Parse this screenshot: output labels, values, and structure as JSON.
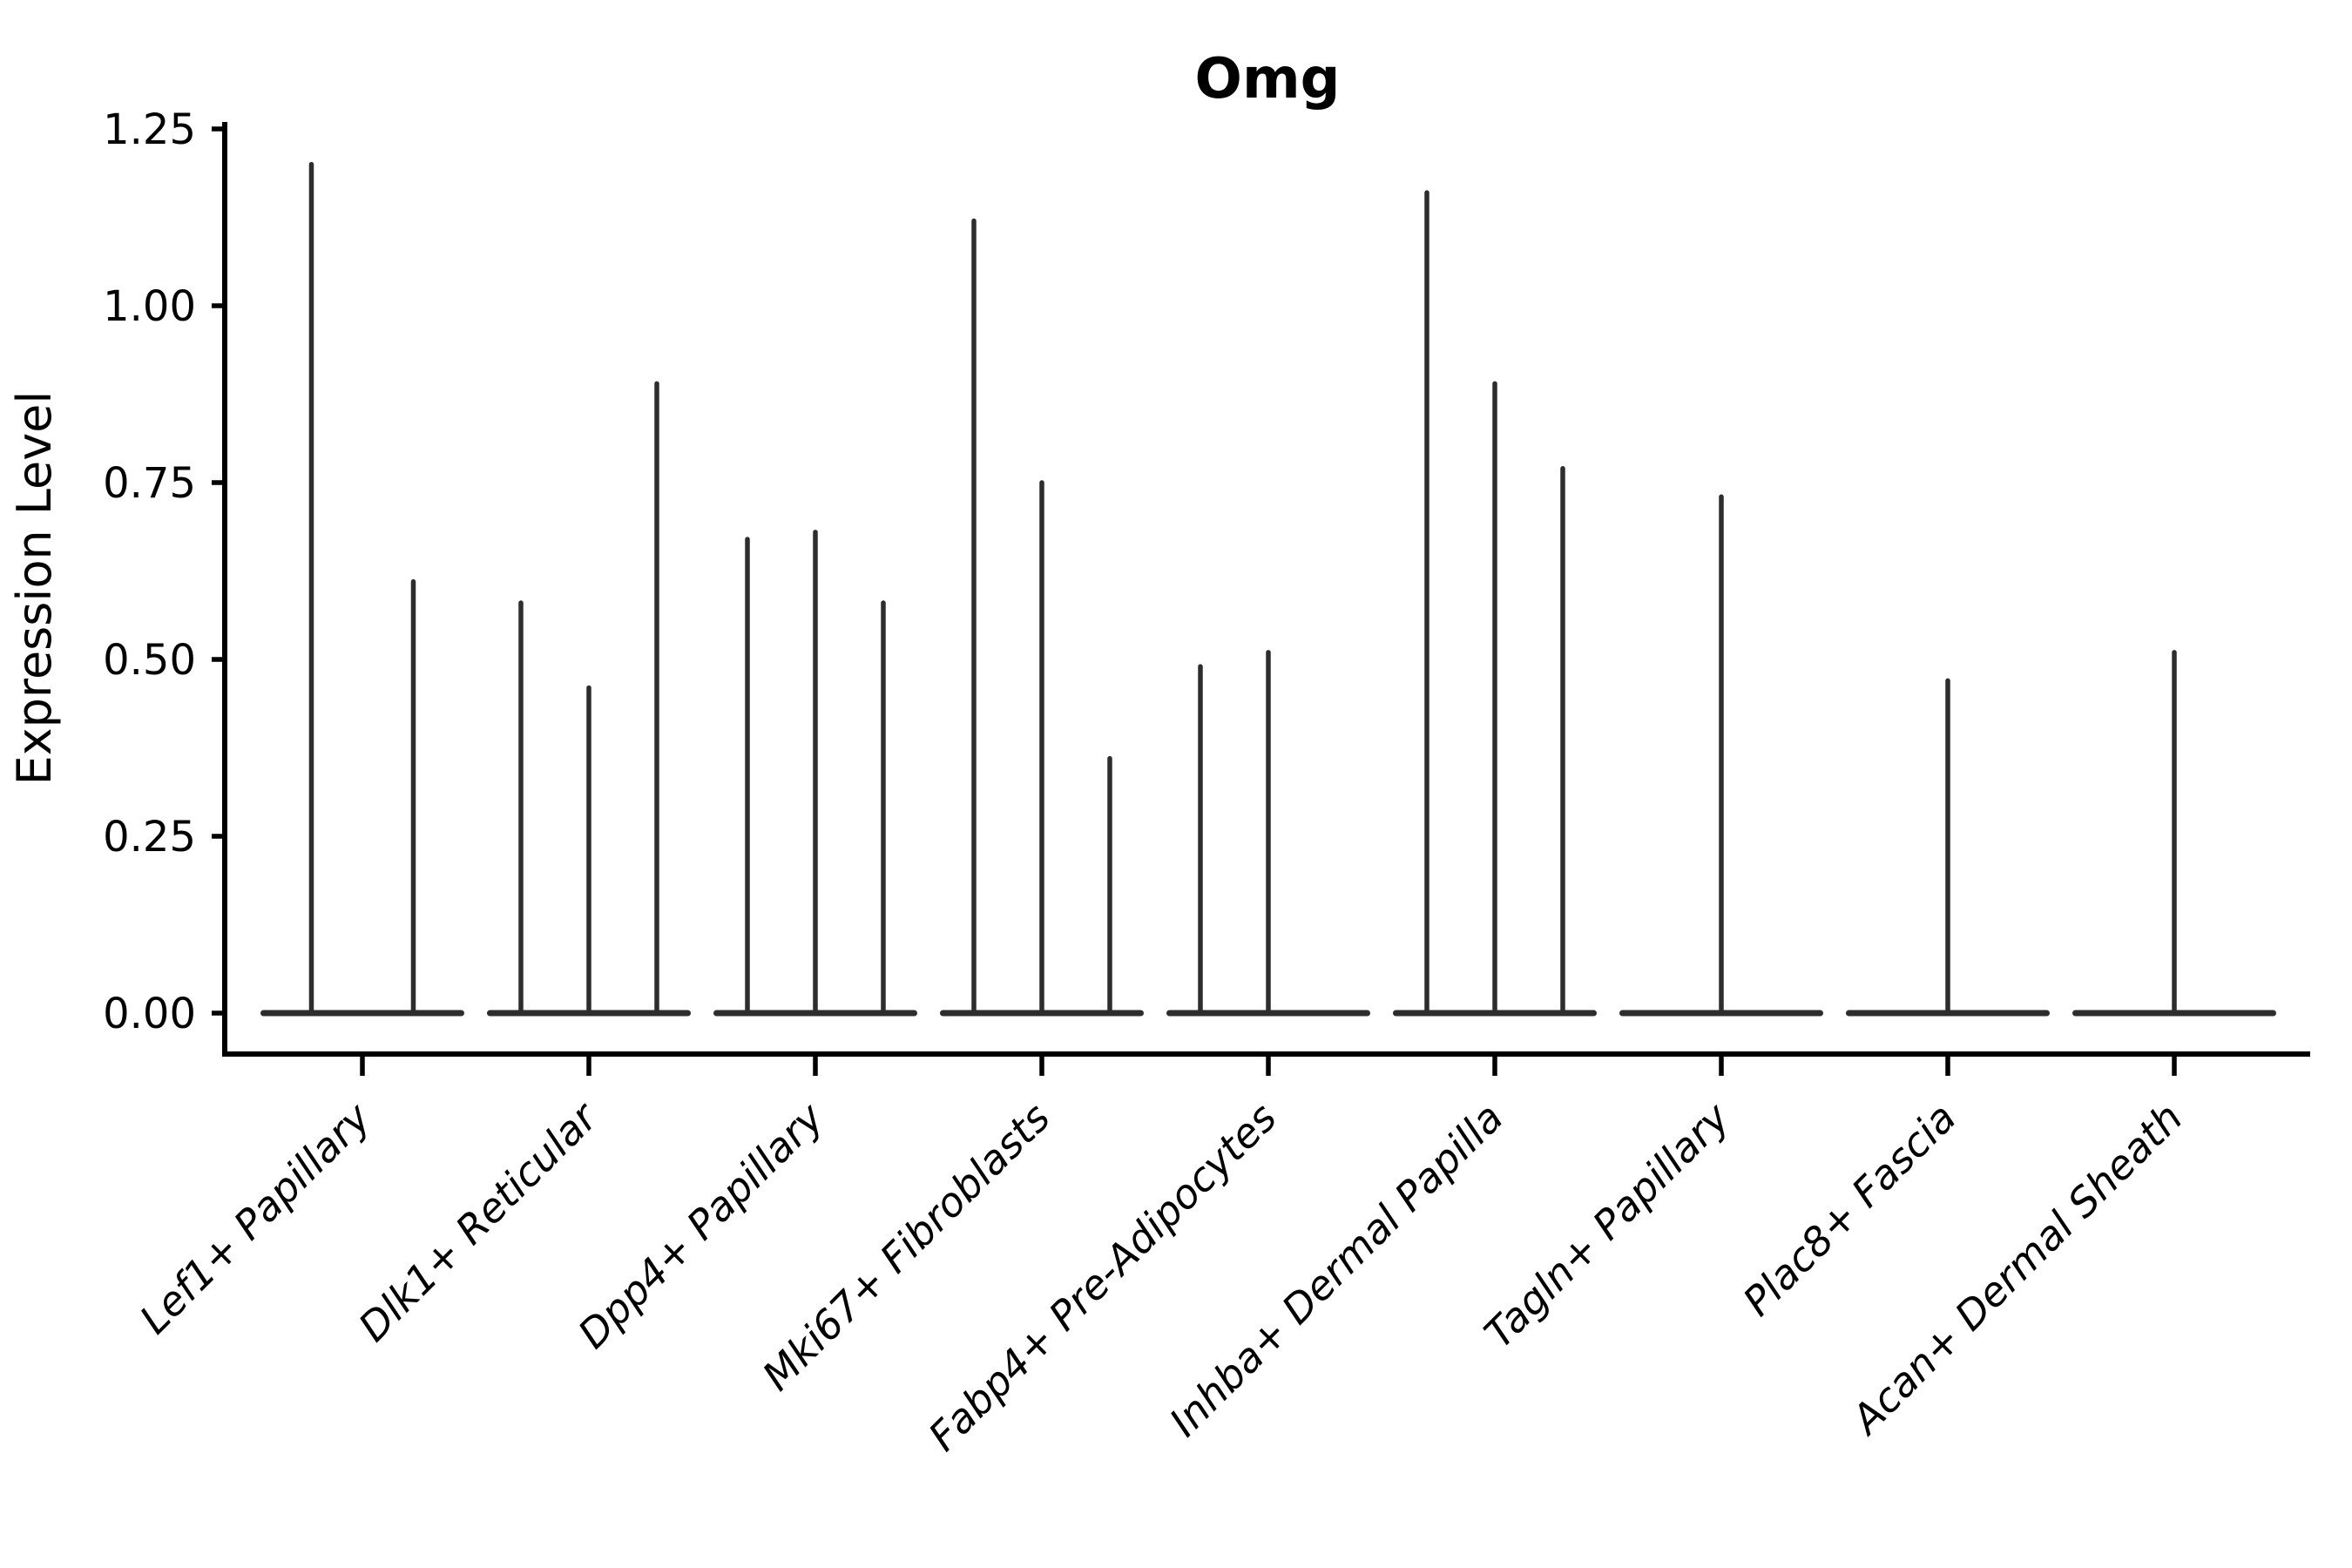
{
  "chart_data": {
    "type": "violin",
    "title": "Omg",
    "xlabel": "",
    "ylabel": "Expression Level",
    "y_ticks": [
      {
        "value": 0.0,
        "label": "0.00"
      },
      {
        "value": 0.25,
        "label": "0.25"
      },
      {
        "value": 0.5,
        "label": "0.50"
      },
      {
        "value": 0.75,
        "label": "0.75"
      },
      {
        "value": 1.0,
        "label": "1.00"
      },
      {
        "value": 1.25,
        "label": "1.25"
      }
    ],
    "ylim": [
      -0.06,
      1.26
    ],
    "grid": false,
    "legend_position": "none",
    "x_tick_label_rotation": 45,
    "baseline_value": 0,
    "categories": [
      "Lef1+ Papillary",
      "Dlk1+ Reticular",
      "Dpp4+ Papillary",
      "Mki67+ Fibroblasts",
      "Fabp4+ Pre-Adipocytes",
      "Inhba+ Dermal Papilla",
      "Tagln+ Papillary",
      "Plac8+ Fascia",
      "Acan+ Dermal Sheath"
    ],
    "groups": [
      {
        "category": "Lef1+ Papillary",
        "spike_maxima": [
          1.2,
          0.61
        ]
      },
      {
        "category": "Dlk1+ Reticular",
        "spike_maxima": [
          0.58,
          0.46,
          0.89
        ]
      },
      {
        "category": "Dpp4+ Papillary",
        "spike_maxima": [
          0.67,
          0.68,
          0.58
        ]
      },
      {
        "category": "Mki67+ Fibroblasts",
        "spike_maxima": [
          1.12,
          0.75,
          0.36
        ]
      },
      {
        "category": "Fabp4+ Pre-Adipocytes",
        "spike_maxima": [
          0.49,
          0.51,
          null
        ]
      },
      {
        "category": "Inhba+ Dermal Papilla",
        "spike_maxima": [
          1.16,
          0.89,
          0.77
        ]
      },
      {
        "category": "Tagln+ Papillary",
        "spike_maxima": [
          0.73
        ]
      },
      {
        "category": "Plac8+ Fascia",
        "spike_maxima": [
          0.47
        ]
      },
      {
        "category": "Acan+ Dermal Sheath",
        "spike_maxima": [
          0.51
        ]
      }
    ],
    "colors": {
      "violin": "#2d2d2d",
      "axis": "#000000",
      "text": "#000000",
      "background": "#ffffff"
    }
  }
}
